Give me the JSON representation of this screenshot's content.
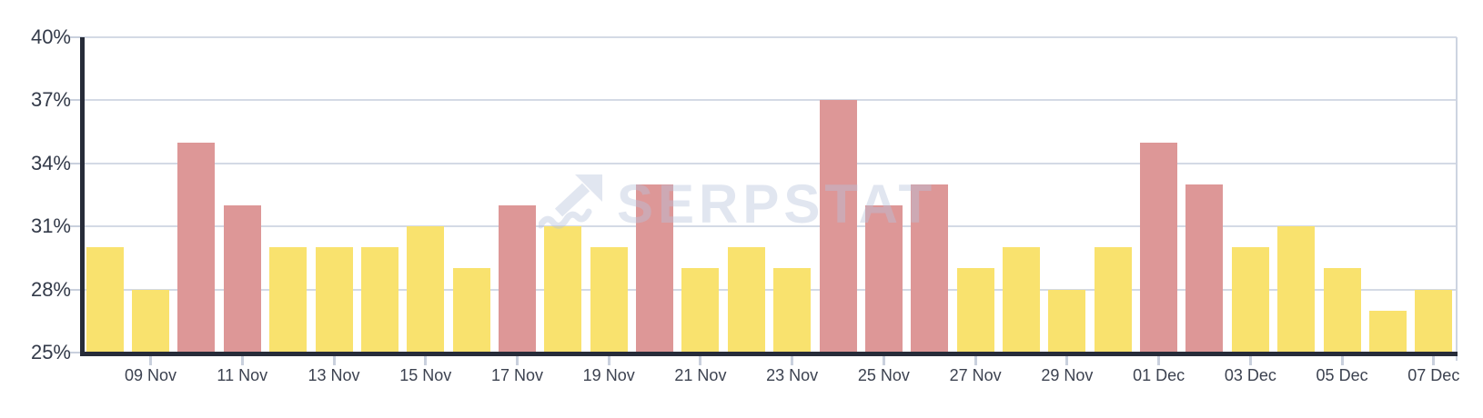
{
  "watermark": {
    "text": "SERPSTAT",
    "icon": "trending-up-arrow-icon"
  },
  "colors": {
    "background": "#ffffff",
    "bar_yellow": "#F9E26E",
    "bar_red": "#DD9797",
    "gridline": "#D4DAE5",
    "right_border": "#CDD4E1",
    "axis_dark": "#272C39",
    "tick": "#C9D0DD",
    "y_label_text": "#333A49",
    "x_label_text": "#3C4250",
    "watermark": "#B8C4DC"
  },
  "chart_data": {
    "type": "bar",
    "title": "",
    "xlabel": "",
    "ylabel": "",
    "unit": "%",
    "ylim": [
      25,
      40
    ],
    "grid": true,
    "legend": "none",
    "y_ticks": [
      {
        "label": "40%",
        "value": 40,
        "gridline": true
      },
      {
        "label": "37%",
        "value": 37,
        "gridline": true
      },
      {
        "label": "34%",
        "value": 34,
        "gridline": true
      },
      {
        "label": "31%",
        "value": 31,
        "gridline": true
      },
      {
        "label": "28%",
        "value": 28,
        "gridline": true
      },
      {
        "label": "25%",
        "value": 25,
        "gridline": false
      }
    ],
    "points": [
      {
        "date": "08 Nov",
        "value": 30,
        "color": "yellow",
        "tick_label": null
      },
      {
        "date": "09 Nov",
        "value": 28,
        "color": "yellow",
        "tick_label": "09 Nov"
      },
      {
        "date": "10 Nov",
        "value": 35,
        "color": "red",
        "tick_label": null
      },
      {
        "date": "11 Nov",
        "value": 32,
        "color": "red",
        "tick_label": "11 Nov"
      },
      {
        "date": "12 Nov",
        "value": 30,
        "color": "yellow",
        "tick_label": null
      },
      {
        "date": "13 Nov",
        "value": 30,
        "color": "yellow",
        "tick_label": "13 Nov"
      },
      {
        "date": "14 Nov",
        "value": 30,
        "color": "yellow",
        "tick_label": null
      },
      {
        "date": "15 Nov",
        "value": 31,
        "color": "yellow",
        "tick_label": "15 Nov"
      },
      {
        "date": "16 Nov",
        "value": 29,
        "color": "yellow",
        "tick_label": null
      },
      {
        "date": "17 Nov",
        "value": 32,
        "color": "red",
        "tick_label": "17 Nov"
      },
      {
        "date": "18 Nov",
        "value": 31,
        "color": "yellow",
        "tick_label": null
      },
      {
        "date": "19 Nov",
        "value": 30,
        "color": "yellow",
        "tick_label": "19 Nov"
      },
      {
        "date": "20 Nov",
        "value": 33,
        "color": "red",
        "tick_label": null
      },
      {
        "date": "21 Nov",
        "value": 29,
        "color": "yellow",
        "tick_label": "21 Nov"
      },
      {
        "date": "22 Nov",
        "value": 30,
        "color": "yellow",
        "tick_label": null
      },
      {
        "date": "23 Nov",
        "value": 29,
        "color": "yellow",
        "tick_label": "23 Nov"
      },
      {
        "date": "24 Nov",
        "value": 37,
        "color": "red",
        "tick_label": null
      },
      {
        "date": "25 Nov",
        "value": 32,
        "color": "red",
        "tick_label": "25 Nov"
      },
      {
        "date": "26 Nov",
        "value": 33,
        "color": "red",
        "tick_label": null
      },
      {
        "date": "27 Nov",
        "value": 29,
        "color": "yellow",
        "tick_label": "27 Nov"
      },
      {
        "date": "28 Nov",
        "value": 30,
        "color": "yellow",
        "tick_label": null
      },
      {
        "date": "29 Nov",
        "value": 28,
        "color": "yellow",
        "tick_label": "29 Nov"
      },
      {
        "date": "30 Nov",
        "value": 30,
        "color": "yellow",
        "tick_label": null
      },
      {
        "date": "01 Dec",
        "value": 35,
        "color": "red",
        "tick_label": "01 Dec"
      },
      {
        "date": "02 Dec",
        "value": 33,
        "color": "red",
        "tick_label": null
      },
      {
        "date": "03 Dec",
        "value": 30,
        "color": "yellow",
        "tick_label": "03 Dec"
      },
      {
        "date": "04 Dec",
        "value": 31,
        "color": "yellow",
        "tick_label": null
      },
      {
        "date": "05 Dec",
        "value": 29,
        "color": "yellow",
        "tick_label": "05 Dec"
      },
      {
        "date": "06 Dec",
        "value": 27,
        "color": "yellow",
        "tick_label": null
      },
      {
        "date": "07 Dec",
        "value": 28,
        "color": "yellow",
        "tick_label": "07 Dec"
      }
    ]
  }
}
